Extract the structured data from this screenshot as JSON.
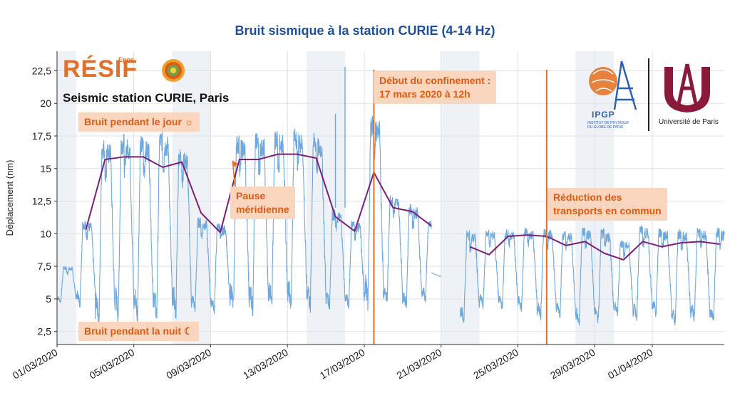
{
  "chart_data": {
    "type": "line",
    "title": "Bruit sismique à la station CURIE (4-14 Hz)",
    "subtitle": "Seismic station CURIE, Paris",
    "ylabel": "Déplacement (nm)",
    "xlabel": "",
    "ylim": [
      1.5,
      24
    ],
    "yticks": [
      2.5,
      5,
      7.5,
      10,
      12.5,
      15,
      17.5,
      20,
      22.5
    ],
    "ytick_labels": [
      "2,5",
      "5",
      "7,5",
      "10",
      "12,5",
      "15",
      "17,5",
      "20",
      "22,5"
    ],
    "xlim": [
      "2020-03-01",
      "2020-04-04T18:00"
    ],
    "xticks": [
      "2020-03-01",
      "2020-03-05",
      "2020-03-09",
      "2020-03-13",
      "2020-03-17",
      "2020-03-21",
      "2020-03-25",
      "2020-03-29",
      "2020-04-01"
    ],
    "xtick_labels": [
      "01/03/2020",
      "05/03/2020",
      "09/03/2020",
      "13/03/2020",
      "17/03/2020",
      "21/03/2020",
      "25/03/2020",
      "29/03/2020",
      "01/04/2020"
    ],
    "grid": true,
    "weekend_bands": [
      [
        "2020-03-01",
        "2020-03-02"
      ],
      [
        "2020-03-07",
        "2020-03-09"
      ],
      [
        "2020-03-14",
        "2020-03-16"
      ],
      [
        "2020-03-21",
        "2020-03-23"
      ],
      [
        "2020-03-28",
        "2020-03-30"
      ]
    ],
    "series": [
      {
        "color": "#6fa8dc",
        "style": "raw",
        "day_peaks": [
          [
            "2020-03-01",
            7.5
          ],
          [
            "2020-03-02",
            11
          ],
          [
            "2020-03-03",
            17.2
          ],
          [
            "2020-03-04",
            17.6
          ],
          [
            "2020-03-05",
            17.4
          ],
          [
            "2020-03-06",
            17.8
          ],
          [
            "2020-03-07",
            16.5
          ],
          [
            "2020-03-08",
            11.2
          ],
          [
            "2020-03-09",
            10.8
          ],
          [
            "2020-03-10",
            17.5
          ],
          [
            "2020-03-11",
            17.6
          ],
          [
            "2020-03-12",
            17.9
          ],
          [
            "2020-03-13",
            18
          ],
          [
            "2020-03-14",
            17.6
          ],
          [
            "2020-03-15",
            11.8
          ],
          [
            "2020-03-16",
            11
          ],
          [
            "2020-03-17",
            19
          ],
          [
            "2020-03-18",
            13
          ],
          [
            "2020-03-19",
            12.2
          ],
          [
            "2020-03-20",
            11
          ],
          [
            "2020-03-22",
            10.2
          ],
          [
            "2020-03-23",
            10.3
          ],
          [
            "2020-03-24",
            10.3
          ],
          [
            "2020-03-25",
            10.4
          ],
          [
            "2020-03-26",
            10.4
          ],
          [
            "2020-03-27",
            10.2
          ],
          [
            "2020-03-28",
            10.5
          ],
          [
            "2020-03-29",
            10.3
          ],
          [
            "2020-03-30",
            9.5
          ],
          [
            "2020-03-31",
            10.6
          ],
          [
            "2020-04-01",
            10.4
          ],
          [
            "2020-04-02",
            10.3
          ],
          [
            "2020-04-03",
            10.4
          ],
          [
            "2020-04-04",
            10.4
          ]
        ],
        "night_lows": [
          [
            "2020-03-01",
            4.8
          ],
          [
            "2020-03-02",
            4.7
          ],
          [
            "2020-03-03",
            3.5
          ],
          [
            "2020-03-04",
            3.8
          ],
          [
            "2020-03-05",
            3.8
          ],
          [
            "2020-03-06",
            3.8
          ],
          [
            "2020-03-07",
            4
          ],
          [
            "2020-03-08",
            4.3
          ],
          [
            "2020-03-09",
            4.2
          ],
          [
            "2020-03-10",
            4.4
          ],
          [
            "2020-03-11",
            4.3
          ],
          [
            "2020-03-12",
            4.5
          ],
          [
            "2020-03-13",
            4.6
          ],
          [
            "2020-03-14",
            4.4
          ],
          [
            "2020-03-15",
            4.5
          ],
          [
            "2020-03-16",
            4.5
          ],
          [
            "2020-03-17",
            4.7
          ],
          [
            "2020-03-18",
            4.9
          ],
          [
            "2020-03-19",
            4.5
          ],
          [
            "2020-03-20",
            5
          ],
          [
            "2020-03-22",
            3.4
          ],
          [
            "2020-03-23",
            4.5
          ],
          [
            "2020-03-24",
            4.4
          ],
          [
            "2020-03-25",
            4.3
          ],
          [
            "2020-03-26",
            3.7
          ],
          [
            "2020-03-27",
            3.9
          ],
          [
            "2020-03-28",
            3.2
          ],
          [
            "2020-03-29",
            3.4
          ],
          [
            "2020-03-30",
            3.9
          ],
          [
            "2020-03-31",
            3.6
          ],
          [
            "2020-04-01",
            3.9
          ],
          [
            "2020-04-02",
            3.2
          ],
          [
            "2020-04-03",
            3.6
          ],
          [
            "2020-04-04",
            3.3
          ]
        ],
        "outliers": [
          [
            "2020-03-16T00:00",
            22.8
          ],
          [
            "2020-03-15T12:00",
            19.2
          ]
        ],
        "gap": [
          [
            "2020-03-20T12:00",
            7.0
          ],
          [
            "2020-03-21T00:00",
            6.7
          ]
        ]
      },
      {
        "color": "#7b1f7b",
        "style": "daily",
        "points": [
          [
            "2020-03-02",
            10.3
          ],
          [
            "2020-03-03",
            15.7
          ],
          [
            "2020-03-04",
            15.9
          ],
          [
            "2020-03-05",
            15.9
          ],
          [
            "2020-03-06",
            15.1
          ],
          [
            "2020-03-07",
            15.5
          ],
          [
            "2020-03-08",
            11.6
          ],
          [
            "2020-03-09",
            10.1
          ],
          [
            "2020-03-10",
            15.7
          ],
          [
            "2020-03-11",
            15.7
          ],
          [
            "2020-03-12",
            16.1
          ],
          [
            "2020-03-13",
            16.1
          ],
          [
            "2020-03-14",
            15.8
          ],
          [
            "2020-03-15",
            11.3
          ],
          [
            "2020-03-16",
            10.2
          ],
          [
            "2020-03-17",
            14.7
          ],
          [
            "2020-03-18",
            12.0
          ],
          [
            "2020-03-19",
            11.7
          ],
          [
            "2020-03-20",
            10.6
          ],
          [
            "2020-03-22",
            9.0
          ],
          [
            "2020-03-23",
            8.4
          ],
          [
            "2020-03-24",
            9.8
          ],
          [
            "2020-03-25",
            9.9
          ],
          [
            "2020-03-26",
            9.8
          ],
          [
            "2020-03-27",
            9.1
          ],
          [
            "2020-03-28",
            9.4
          ],
          [
            "2020-03-29",
            8.5
          ],
          [
            "2020-03-30",
            8.0
          ],
          [
            "2020-03-31",
            9.4
          ],
          [
            "2020-04-01",
            9.0
          ],
          [
            "2020-04-02",
            9.3
          ],
          [
            "2020-04-03",
            9.4
          ],
          [
            "2020-04-04",
            9.2
          ]
        ]
      }
    ],
    "vlines": [
      {
        "x": "2020-03-17T12:00",
        "color": "#e07028"
      },
      {
        "x": "2020-03-26T12:00",
        "color": "#e07028"
      }
    ],
    "annotations": [
      {
        "text": "Bruit pendant le jour ☼"
      },
      {
        "text": "Bruit pendant la nuit ☾"
      },
      {
        "text": "Pause\nméridienne"
      },
      {
        "text": "Début du confinement :\n17 mars 2020 à 12h"
      },
      {
        "text": "Réduction des\ntransports en commun"
      }
    ]
  },
  "colors": {
    "title": "#1f4e9c",
    "annotation_text": "#e05a12",
    "annotation_bg": "#f9d6bd",
    "raw_series": "#6fa8dc",
    "daily_series": "#7b1f7b",
    "weekend_band": "#eef1f6",
    "event_line": "#e07028"
  },
  "logos": {
    "resif_small": "Epos",
    "resif": "RÉSIF",
    "ipgp": "IPGP",
    "ipgp_sub": "INSTITUT DE PHYSIQUE DU GLOBE DE PARIS",
    "univ": "Université de Paris"
  }
}
